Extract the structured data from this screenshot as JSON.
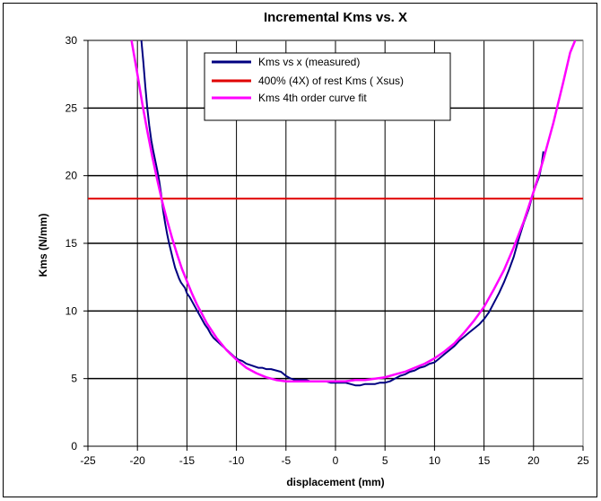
{
  "chart_data": {
    "type": "line",
    "title": "Incremental Kms vs. X",
    "xlabel": "displacement (mm)",
    "ylabel": "Kms (N/mm)",
    "xlim": [
      -25,
      25
    ],
    "ylim": [
      0,
      30
    ],
    "x_ticks": [
      -25,
      -20,
      -15,
      -10,
      -5,
      0,
      5,
      10,
      15,
      20,
      25
    ],
    "y_ticks": [
      0,
      5,
      10,
      15,
      20,
      25,
      30
    ],
    "x_tick_labels": [
      "-25",
      "-20",
      "-15",
      "-10",
      "-5",
      "0",
      "5",
      "10",
      "15",
      "20",
      "25"
    ],
    "y_tick_labels": [
      "0",
      "5",
      "10",
      "15",
      "20",
      "25",
      "30"
    ],
    "grid": {
      "vertical": true,
      "horizontal": true
    },
    "legend_position": "top-center",
    "series": [
      {
        "name": "Kms vs x (measured)",
        "color": "#000080",
        "x": [
          -19.6,
          -19.4,
          -19.2,
          -19.0,
          -18.8,
          -18.6,
          -18.4,
          -18.2,
          -18.0,
          -17.8,
          -17.6,
          -17.4,
          -17.2,
          -17.0,
          -16.8,
          -16.6,
          -16.4,
          -16.2,
          -16.0,
          -15.8,
          -15.6,
          -15.4,
          -15.2,
          -15.0,
          -14.7,
          -14.4,
          -14.1,
          -13.8,
          -13.5,
          -13.2,
          -12.9,
          -12.6,
          -12.3,
          -12.0,
          -11.7,
          -11.4,
          -11.1,
          -10.8,
          -10.5,
          -10.2,
          -9.8,
          -9.4,
          -9.0,
          -8.6,
          -8.2,
          -7.8,
          -7.4,
          -7.0,
          -6.5,
          -6.0,
          -5.5,
          -5.0,
          -4.5,
          -4.0,
          -3.5,
          -3.0,
          -2.5,
          -2.0,
          -1.5,
          -1.0,
          -0.5,
          0.0,
          0.5,
          1.0,
          1.5,
          2.0,
          2.5,
          3.0,
          3.5,
          4.0,
          4.5,
          5.0,
          5.5,
          6.0,
          6.5,
          7.0,
          7.5,
          8.0,
          8.5,
          9.0,
          9.5,
          10.0,
          10.5,
          11.0,
          11.5,
          12.0,
          12.5,
          13.0,
          13.5,
          14.0,
          14.5,
          15.0,
          15.5,
          16.0,
          16.5,
          17.0,
          17.5,
          18.0,
          18.5,
          19.0,
          19.5,
          20.0,
          20.3,
          20.6,
          20.8,
          21.0
        ],
        "values": [
          30.0,
          28.4,
          26.6,
          25.0,
          23.7,
          22.6,
          21.8,
          21.1,
          20.4,
          19.6,
          18.6,
          17.4,
          16.5,
          15.7,
          15.0,
          14.4,
          13.8,
          13.2,
          12.8,
          12.4,
          12.1,
          11.9,
          11.7,
          11.3,
          11.0,
          10.6,
          10.2,
          9.8,
          9.4,
          9.0,
          8.7,
          8.3,
          8.0,
          7.8,
          7.6,
          7.4,
          7.2,
          7.0,
          6.8,
          6.6,
          6.4,
          6.3,
          6.1,
          6.0,
          5.9,
          5.8,
          5.8,
          5.7,
          5.7,
          5.6,
          5.5,
          5.2,
          5.0,
          4.9,
          4.9,
          4.9,
          4.8,
          4.8,
          4.8,
          4.8,
          4.7,
          4.7,
          4.7,
          4.7,
          4.6,
          4.5,
          4.5,
          4.6,
          4.6,
          4.6,
          4.7,
          4.7,
          4.8,
          5.0,
          5.2,
          5.3,
          5.5,
          5.6,
          5.8,
          5.9,
          6.1,
          6.2,
          6.5,
          6.8,
          7.1,
          7.4,
          7.8,
          8.1,
          8.4,
          8.7,
          9.0,
          9.4,
          9.9,
          10.6,
          11.3,
          12.1,
          13.0,
          14.0,
          15.3,
          16.5,
          17.5,
          18.8,
          19.4,
          20.0,
          20.7,
          21.8
        ]
      },
      {
        "name": "400% (4X) of rest Kms ( Xsus)",
        "color": "#e00000",
        "x": [
          -25,
          25
        ],
        "values": [
          18.3,
          18.3
        ]
      },
      {
        "name": "Kms 4th order curve fit",
        "color": "#ff00ff",
        "x": [
          -20.6,
          -20.0,
          -19.5,
          -19.0,
          -18.5,
          -18.0,
          -17.5,
          -17.0,
          -16.5,
          -16.0,
          -15.5,
          -15.0,
          -14.5,
          -14.0,
          -13.5,
          -13.0,
          -12.0,
          -11.0,
          -10.0,
          -9.0,
          -8.0,
          -7.0,
          -6.0,
          -5.0,
          -4.0,
          -3.0,
          -2.0,
          -1.0,
          0.0,
          1.0,
          2.0,
          3.0,
          4.0,
          5.0,
          6.0,
          7.0,
          8.0,
          9.0,
          10.0,
          11.0,
          12.0,
          13.0,
          14.0,
          15.0,
          16.0,
          17.0,
          18.0,
          19.0,
          20.0,
          21.0,
          22.0,
          23.0,
          23.7,
          24.2
        ],
        "values": [
          30.0,
          27.5,
          25.3,
          23.3,
          21.4,
          19.7,
          18.1,
          16.7,
          15.4,
          14.2,
          13.1,
          12.2,
          11.3,
          10.5,
          9.8,
          9.1,
          8.0,
          7.1,
          6.4,
          5.8,
          5.4,
          5.1,
          4.9,
          4.8,
          4.8,
          4.8,
          4.8,
          4.8,
          4.8,
          4.8,
          4.9,
          4.9,
          5.0,
          5.1,
          5.3,
          5.5,
          5.8,
          6.1,
          6.5,
          7.0,
          7.6,
          8.4,
          9.3,
          10.3,
          11.6,
          13.0,
          14.7,
          16.6,
          18.8,
          21.2,
          23.9,
          26.9,
          29.1,
          30.0
        ]
      }
    ]
  }
}
